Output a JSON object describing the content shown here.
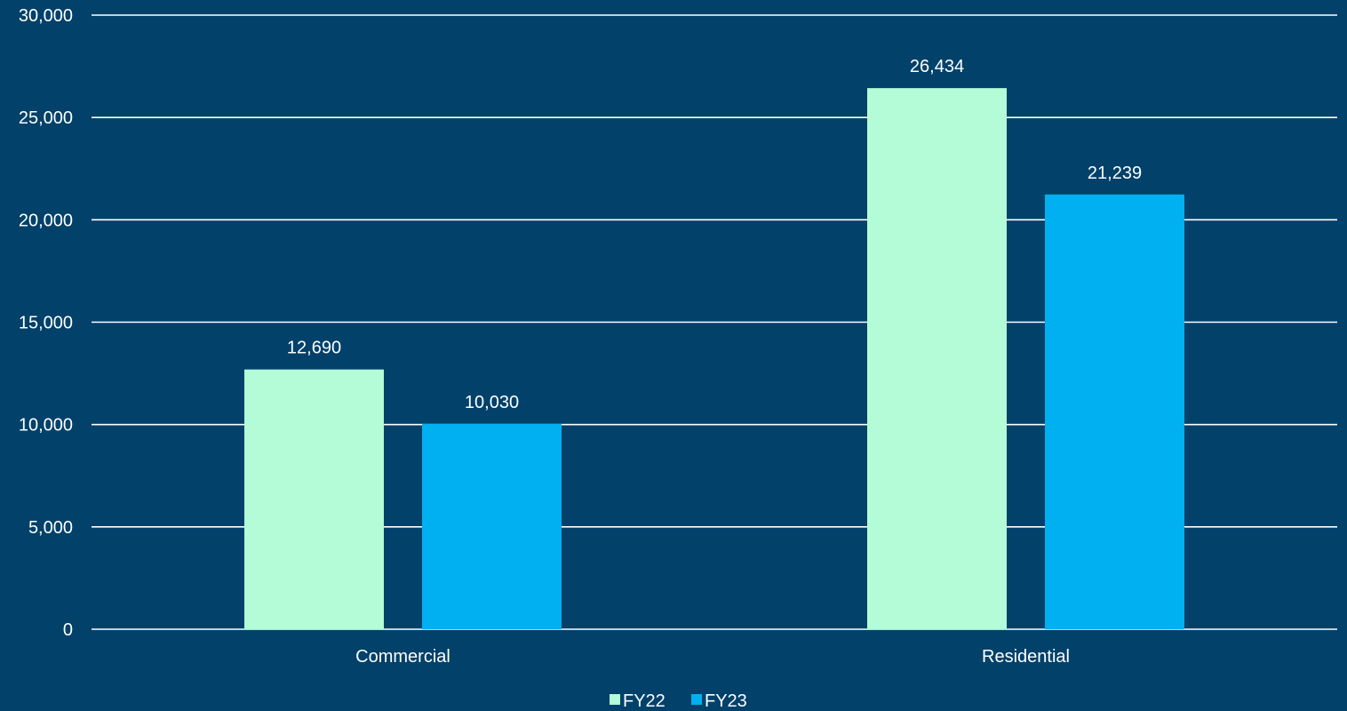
{
  "chart_data": {
    "type": "bar",
    "categories": [
      "Commercial",
      "Residential"
    ],
    "series": [
      {
        "name": "FY22",
        "color": "#b3fcd7",
        "values": [
          12690,
          26434
        ],
        "labels": [
          "12,690",
          "26,434"
        ]
      },
      {
        "name": "FY23",
        "color": "#00b0f0",
        "values": [
          10030,
          21239
        ],
        "labels": [
          "10,030",
          "21,239"
        ]
      }
    ],
    "yticks": [
      0,
      5000,
      10000,
      15000,
      20000,
      25000,
      30000
    ],
    "ytick_labels": [
      "0",
      "5,000",
      "10,000",
      "15,000",
      "20,000",
      "25,000",
      "30,000"
    ],
    "ylim": [
      0,
      30000
    ],
    "grid": true,
    "legend_position": "bottom",
    "background_color": "#01416a",
    "gridline_color": "#ffffff",
    "text_color": "#ffffff"
  }
}
